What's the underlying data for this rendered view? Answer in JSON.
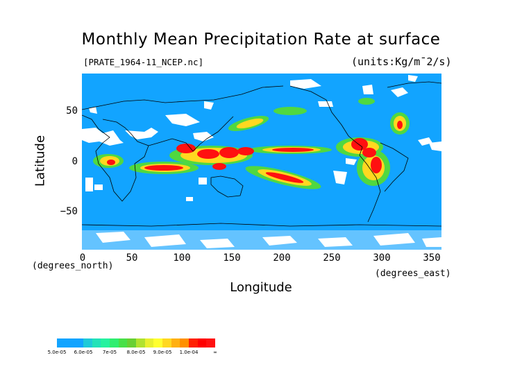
{
  "title": "Monthly Mean Precipitation Rate at surface",
  "file_label": "[PRATE_1964-11_NCEP.nc]",
  "units_label": "(units:Kg/m¯2/s)",
  "y_axis": {
    "label": "Latitude",
    "note": "(degrees_north)",
    "ticks": [
      "50",
      "0",
      "−50"
    ]
  },
  "x_axis": {
    "label": "Longitude",
    "note": "(degrees_east)",
    "ticks": [
      "0",
      "50",
      "100",
      "150",
      "200",
      "250",
      "300",
      "350"
    ]
  },
  "colorbar": {
    "labels": [
      "5.0e-05",
      "6.0e-05",
      "7e-05",
      "8.0e-05",
      "9.0e-05",
      "1.0e-04",
      "∞"
    ],
    "colors": [
      [
        "#12a4ff",
        "#12a4ff",
        "#12a4ff"
      ],
      [
        "#1ecad8",
        "#22e2b8",
        "#26f2a0"
      ],
      [
        "#30ee70",
        "#48e048",
        "#68d034"
      ],
      [
        "#b0e230",
        "#e8f030",
        "#ffff30"
      ],
      [
        "#ffd820",
        "#ffb010",
        "#ff9000"
      ],
      [
        "#ff2000",
        "#ff0000",
        "#ff1010"
      ]
    ]
  },
  "map": {
    "lon_range": [
      0,
      360
    ],
    "lat_range": [
      -90,
      90
    ],
    "ocean_color": "#12a4ff",
    "missing_color": "#ffffff",
    "coastline_color": "#000000",
    "grid": false
  },
  "chart_data": {
    "type": "heatmap",
    "title": "Monthly Mean Precipitation Rate at surface",
    "xlabel": "Longitude",
    "ylabel": "Latitude",
    "xlim": [
      0,
      360
    ],
    "ylim": [
      -90,
      90
    ],
    "x_ticks": [
      0,
      50,
      100,
      150,
      200,
      250,
      300,
      350
    ],
    "y_ticks": [
      -50,
      0,
      50
    ],
    "levels": [
      "5.0e-05",
      "6.0e-05",
      "7e-05",
      "8.0e-05",
      "9.0e-05",
      "1.0e-04"
    ]
  }
}
